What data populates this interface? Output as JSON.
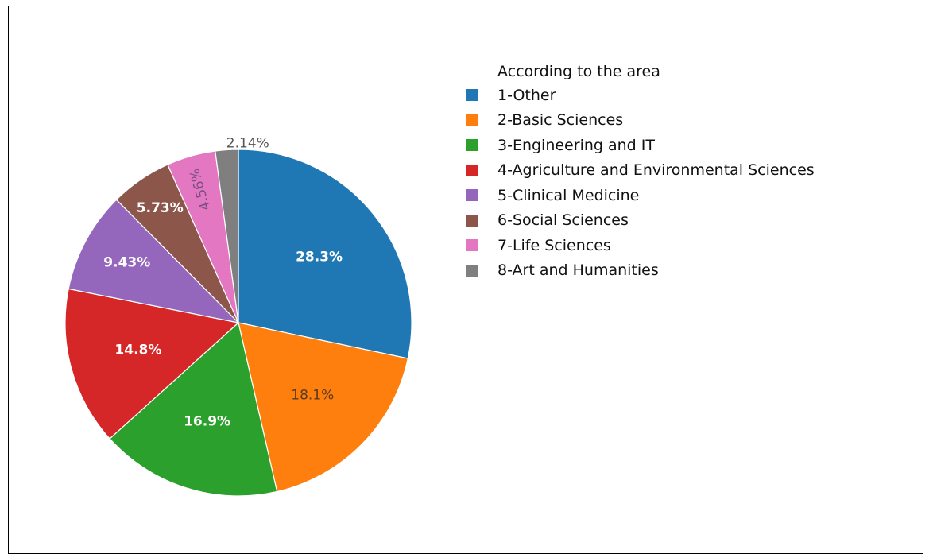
{
  "chart_data": {
    "type": "pie",
    "legend_title": "According to the area",
    "legend_position": "right",
    "slices": [
      {
        "label": "1-Other",
        "value": 28.3,
        "display": "28.3%",
        "color": "#1f77b4",
        "text_color": "#ffffff",
        "text_weight": "bold",
        "placement": "inside"
      },
      {
        "label": "2-Basic Sciences",
        "value": 18.1,
        "display": "18.1%",
        "color": "#ff7f0e",
        "text_color": "#5a3a1c",
        "text_weight": "normal",
        "placement": "inside"
      },
      {
        "label": "3-Engineering and IT",
        "value": 16.9,
        "display": "16.9%",
        "color": "#2ca02c",
        "text_color": "#ffffff",
        "text_weight": "bold",
        "placement": "inside"
      },
      {
        "label": "4-Agriculture and Environmental Sciences",
        "value": 14.8,
        "display": "14.8%",
        "color": "#d62728",
        "text_color": "#ffffff",
        "text_weight": "bold",
        "placement": "inside"
      },
      {
        "label": "5-Clinical Medicine",
        "value": 9.43,
        "display": "9.43%",
        "color": "#9467bd",
        "text_color": "#ffffff",
        "text_weight": "bold",
        "placement": "inside"
      },
      {
        "label": "6-Social Sciences",
        "value": 5.73,
        "display": "5.73%",
        "color": "#8c564b",
        "text_color": "#ffffff",
        "text_weight": "bold",
        "placement": "inside"
      },
      {
        "label": "7-Life Sciences",
        "value": 4.56,
        "display": "4.56%",
        "color": "#e377c2",
        "text_color": "#7a5080",
        "text_weight": "normal",
        "placement": "inside-rotated"
      },
      {
        "label": "8-Art and Humanities",
        "value": 2.14,
        "display": "2.14%",
        "color": "#7f7f7f",
        "text_color": "#555555",
        "text_weight": "normal",
        "placement": "outside"
      }
    ]
  }
}
